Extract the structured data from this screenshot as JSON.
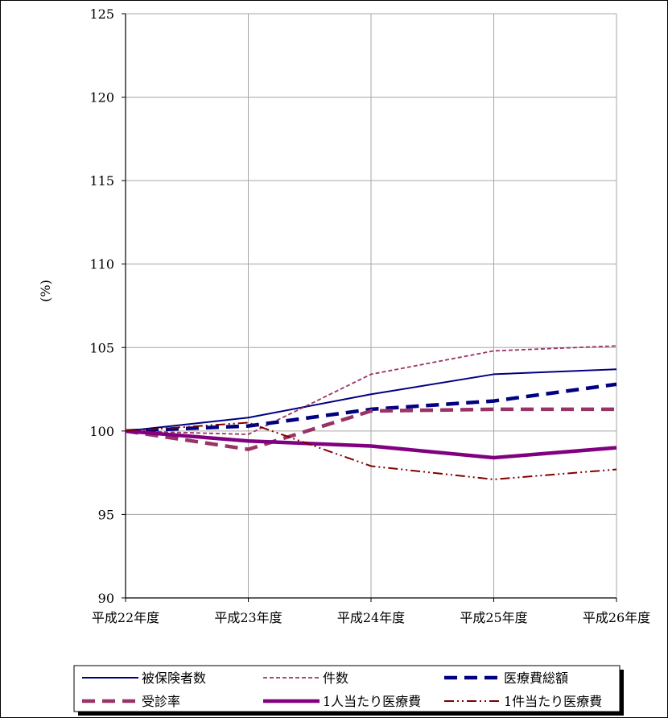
{
  "chart_data": {
    "type": "line",
    "title": "",
    "xlabel": "",
    "ylabel": "(%)",
    "categories": [
      "平成22年度",
      "平成23年度",
      "平成24年度",
      "平成25年度",
      "平成26年度"
    ],
    "ylim": [
      90,
      125
    ],
    "yticks": [
      90,
      95,
      100,
      105,
      110,
      115,
      120,
      125
    ],
    "grid": true,
    "legend_position": "bottom",
    "series": [
      {
        "name": "被保険者数",
        "values": [
          100.0,
          100.8,
          102.2,
          103.4,
          103.7
        ],
        "color": "#000080",
        "style": "solid-thin"
      },
      {
        "name": "件数",
        "values": [
          100.0,
          99.8,
          103.4,
          104.8,
          105.1
        ],
        "color": "#993366",
        "style": "dashed-thin"
      },
      {
        "name": "医療費総額",
        "values": [
          100.0,
          100.3,
          101.3,
          101.8,
          102.8
        ],
        "color": "#000080",
        "style": "dashed-thick"
      },
      {
        "name": "受診率",
        "values": [
          100.0,
          98.9,
          101.2,
          101.3,
          101.3
        ],
        "color": "#993366",
        "style": "dashed-thick"
      },
      {
        "name": "1人当たり医療費",
        "values": [
          100.0,
          99.4,
          99.1,
          98.4,
          99.0
        ],
        "color": "#800080",
        "style": "solid-thick"
      },
      {
        "name": "1件当たり医療費",
        "values": [
          100.0,
          100.5,
          97.9,
          97.1,
          97.7
        ],
        "color": "#800000",
        "style": "dash-dot-dot"
      }
    ]
  }
}
